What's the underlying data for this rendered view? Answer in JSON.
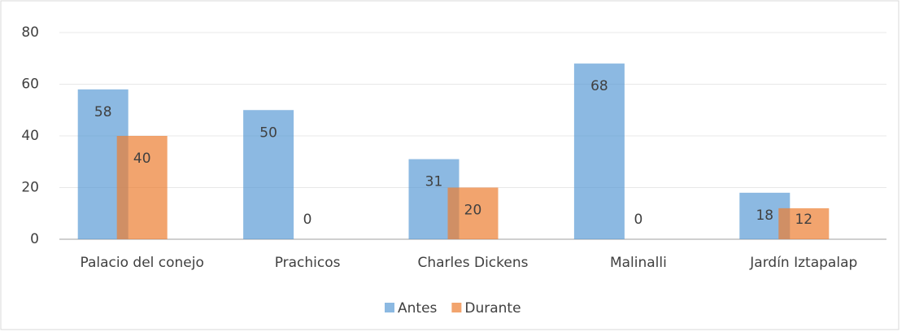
{
  "chart_data": {
    "type": "bar",
    "categories": [
      "Palacio del conejo",
      "Prachicos",
      "Charles Dickens",
      "Malinalli",
      "Jardín Iztapalap"
    ],
    "series": [
      {
        "name": "Antes",
        "color": "#5b9bd5",
        "values": [
          58,
          50,
          31,
          68,
          18
        ]
      },
      {
        "name": "Durante",
        "color": "#ed7d31",
        "values": [
          40,
          0,
          20,
          0,
          12
        ]
      }
    ],
    "ylim": [
      0,
      80
    ],
    "yticks": [
      0,
      20,
      40,
      60,
      80
    ],
    "grid": true,
    "legend": "bottom"
  }
}
